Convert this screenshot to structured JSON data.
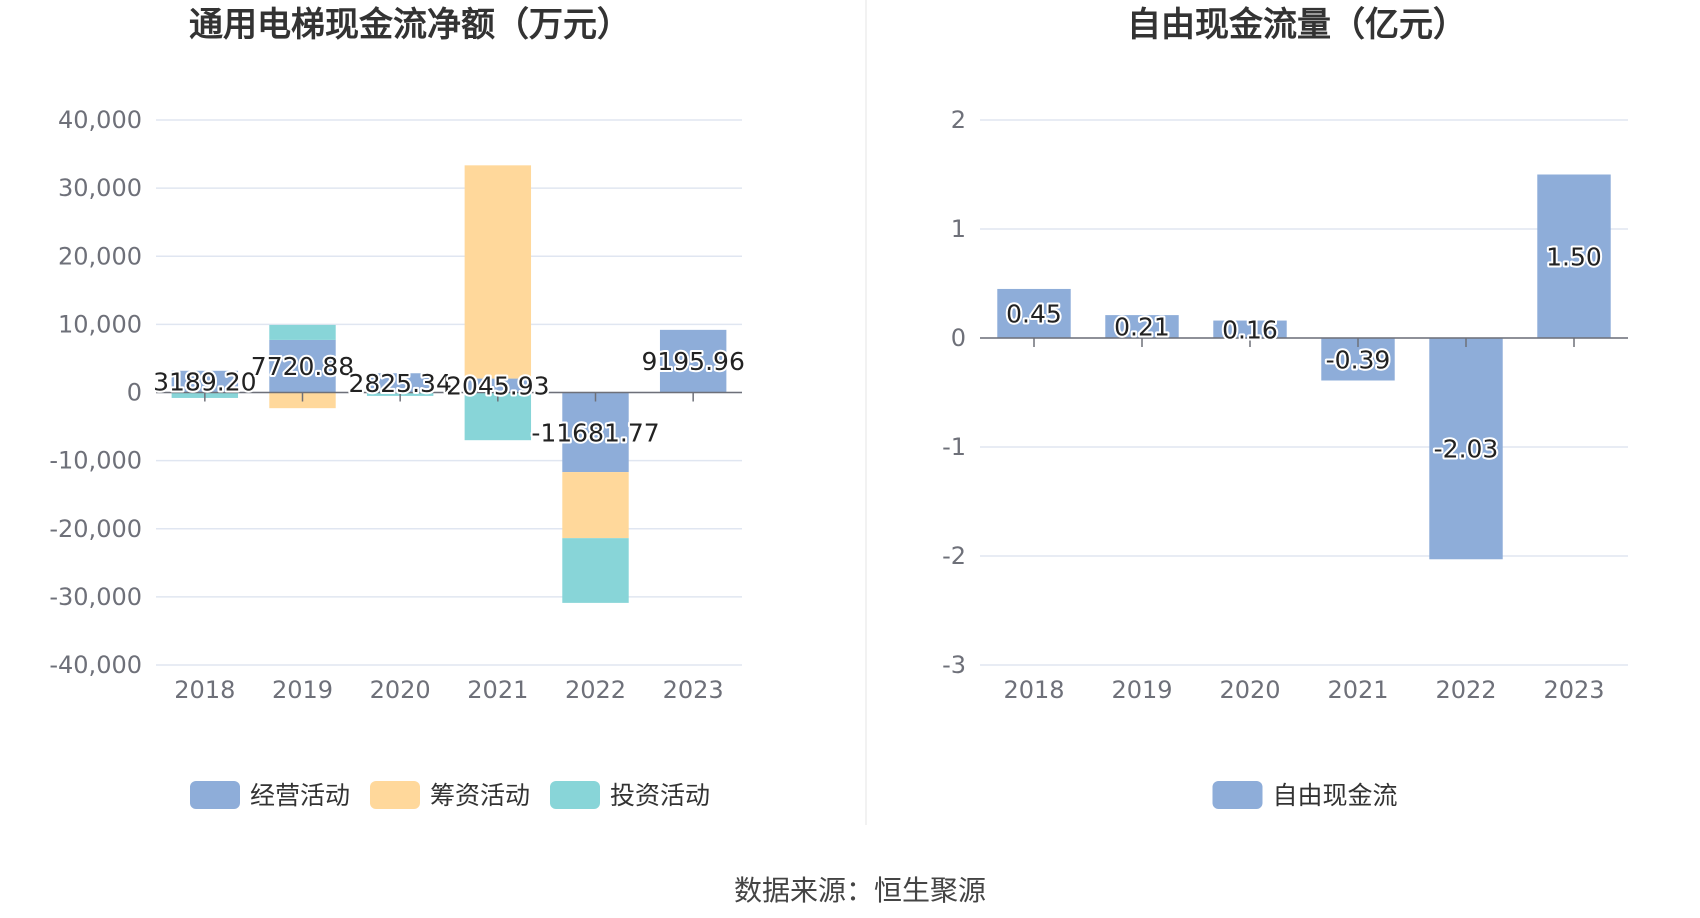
{
  "source_text": "数据来源：恒生聚源",
  "chart_data": [
    {
      "type": "bar",
      "stacked": true,
      "title": "通用电梯现金流净额（万元）",
      "categories": [
        "2018",
        "2019",
        "2020",
        "2021",
        "2022",
        "2023"
      ],
      "ylim": [
        -40000,
        40000
      ],
      "yticks": [
        "40,000",
        "30,000",
        "20,000",
        "10,000",
        "0",
        "-10,000",
        "-20,000",
        "-30,000",
        "-40,000"
      ],
      "grid": true,
      "legend_position": "bottom",
      "series": [
        {
          "name": "经营活动",
          "color": "#8eadd9",
          "values": [
            3189.2,
            7720.88,
            2825.34,
            2045.93,
            -11681.77,
            9195.96
          ]
        },
        {
          "name": "筹资活动",
          "color": "#ffd89b",
          "values": [
            0,
            -2300,
            0,
            31300,
            -9700,
            0
          ]
        },
        {
          "name": "投资活动",
          "color": "#88d5d8",
          "values": [
            -800,
            2200,
            -500,
            -7000,
            -9500,
            0
          ]
        }
      ],
      "data_labels": [
        "3189.20",
        "7720.88",
        "2825.34",
        "2045.93",
        "-11681.77",
        "9195.96"
      ]
    },
    {
      "type": "bar",
      "title": "自由现金流量（亿元）",
      "categories": [
        "2018",
        "2019",
        "2020",
        "2021",
        "2022",
        "2023"
      ],
      "ylim": [
        -3,
        2
      ],
      "yticks": [
        "2",
        "1",
        "0",
        "-1",
        "-2",
        "-3"
      ],
      "grid": true,
      "legend_position": "bottom",
      "series": [
        {
          "name": "自由现金流",
          "color": "#8eadd9",
          "values": [
            0.45,
            0.21,
            0.16,
            -0.39,
            -2.03,
            1.5
          ]
        }
      ],
      "data_labels": [
        "0.45",
        "0.21",
        "0.16",
        "-0.39",
        "-2.03",
        "1.50"
      ]
    }
  ]
}
